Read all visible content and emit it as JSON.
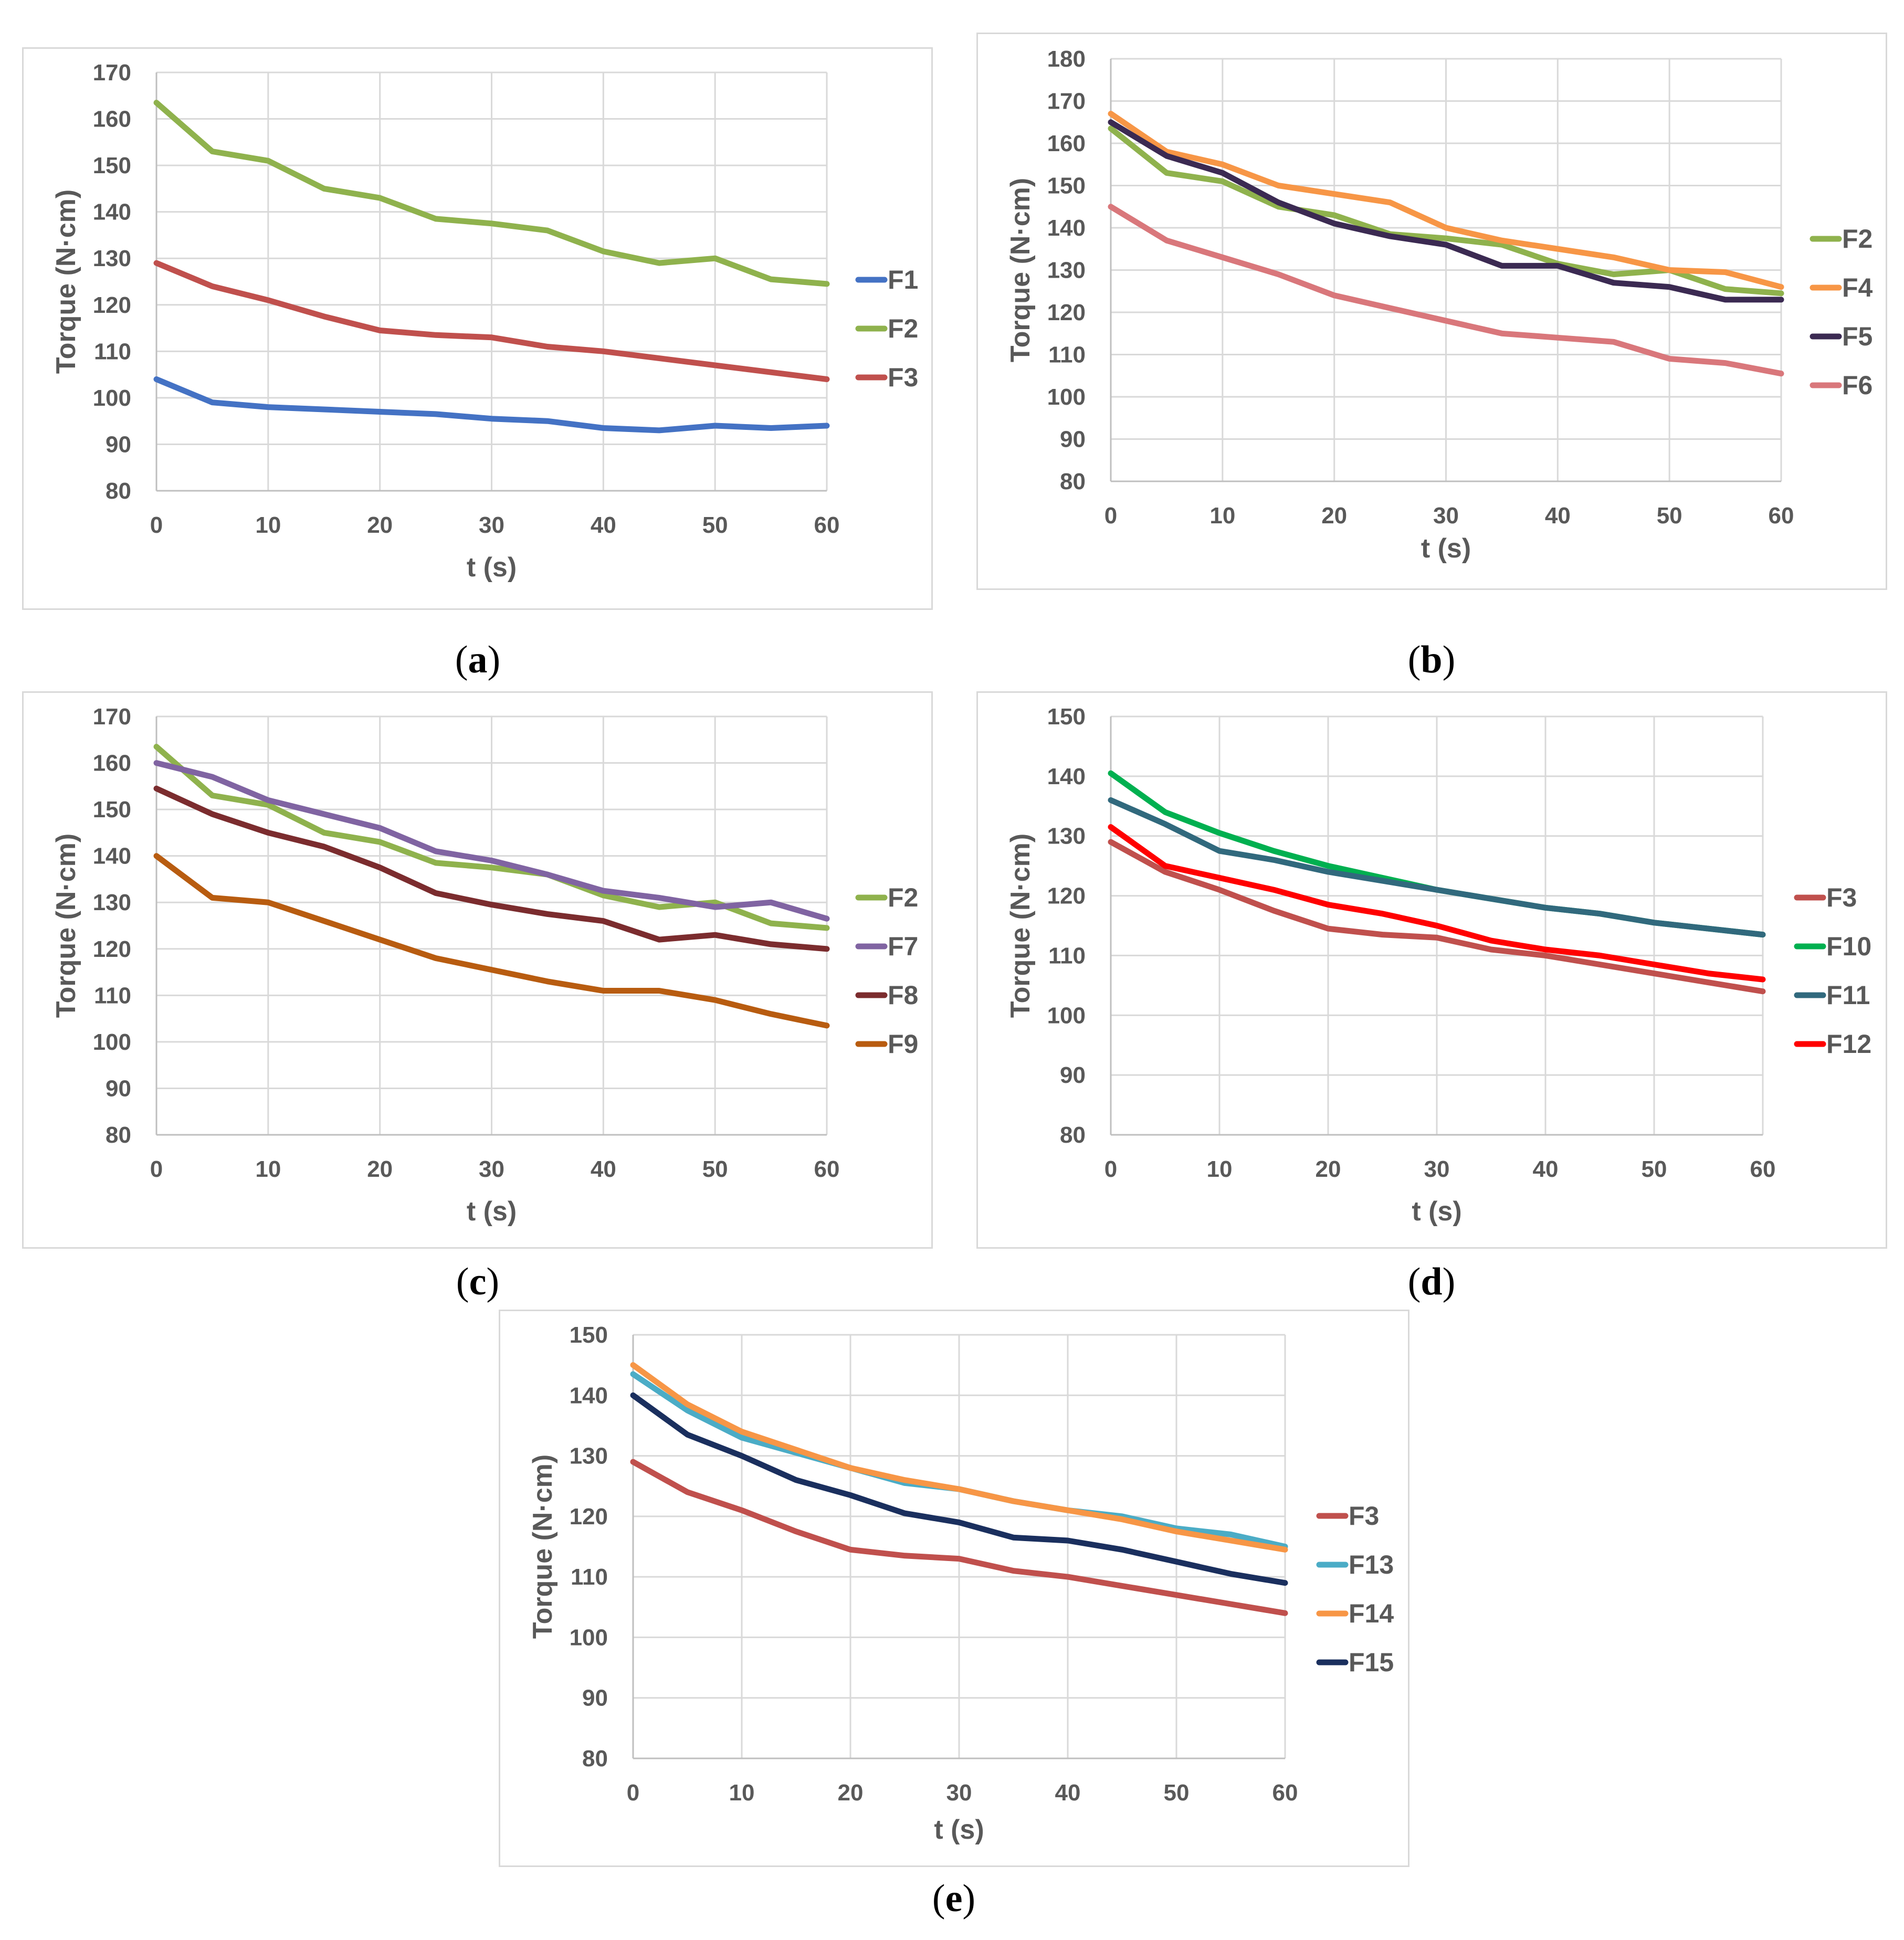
{
  "chart_data": [
    {
      "type": "line",
      "id": "a",
      "caption": "a",
      "xlabel": "t (s)",
      "ylabel": "Torque (N·cm)",
      "xlim": [
        0,
        60
      ],
      "ylim": [
        80,
        170
      ],
      "xticks": [
        0,
        10,
        20,
        30,
        40,
        50,
        60
      ],
      "yticks": [
        80,
        90,
        100,
        110,
        120,
        130,
        140,
        150,
        160,
        170
      ],
      "grid": true,
      "legend": "right",
      "x": [
        0,
        5,
        10,
        15,
        20,
        25,
        30,
        35,
        40,
        45,
        50,
        55,
        60
      ],
      "series": [
        {
          "name": "F1",
          "color": "#4472c4",
          "values": [
            104,
            99,
            98,
            97.5,
            97,
            96.5,
            95.5,
            95,
            93.5,
            93,
            94,
            93.5,
            94
          ]
        },
        {
          "name": "F2",
          "color": "#8fb24d",
          "values": [
            163.5,
            153,
            151,
            145,
            143,
            138.5,
            137.5,
            136,
            131.5,
            129,
            130,
            125.5,
            124.5
          ]
        },
        {
          "name": "F3",
          "color": "#c0504d",
          "values": [
            129,
            124,
            121,
            117.5,
            114.5,
            113.5,
            113,
            111,
            110,
            108.5,
            107,
            105.5,
            104
          ]
        }
      ]
    },
    {
      "type": "line",
      "id": "b",
      "caption": "b",
      "xlabel": "t (s)",
      "ylabel": "Torque (N·cm)",
      "xlim": [
        0,
        60
      ],
      "ylim": [
        80,
        180
      ],
      "xticks": [
        0,
        10,
        20,
        30,
        40,
        50,
        60
      ],
      "yticks": [
        80,
        90,
        100,
        110,
        120,
        130,
        140,
        150,
        160,
        170,
        180
      ],
      "grid": true,
      "legend": "right",
      "x": [
        0,
        5,
        10,
        15,
        20,
        25,
        30,
        35,
        40,
        45,
        50,
        55,
        60
      ],
      "series": [
        {
          "name": "F2",
          "color": "#8fb24d",
          "values": [
            163.5,
            153,
            151,
            145,
            143,
            138.5,
            137.5,
            136,
            131.5,
            129,
            130,
            125.5,
            124.5
          ]
        },
        {
          "name": "F4",
          "color": "#f79646",
          "values": [
            167,
            158,
            155,
            150,
            148,
            146,
            140,
            137,
            135,
            133,
            130,
            129.5,
            126
          ]
        },
        {
          "name": "F5",
          "color": "#3b2a52",
          "values": [
            165,
            157,
            153,
            146,
            141,
            138,
            136,
            131,
            131,
            127,
            126,
            123,
            123
          ]
        },
        {
          "name": "F6",
          "color": "#d9777b",
          "values": [
            145,
            137,
            133,
            129,
            124,
            121,
            118,
            115,
            114,
            113,
            109,
            108,
            105.5
          ]
        }
      ]
    },
    {
      "type": "line",
      "id": "c",
      "caption": "c",
      "xlabel": "t (s)",
      "ylabel": "Torque (N·cm)",
      "xlim": [
        0,
        60
      ],
      "ylim": [
        80,
        170
      ],
      "xticks": [
        0,
        10,
        20,
        30,
        40,
        50,
        60
      ],
      "yticks": [
        80,
        90,
        100,
        110,
        120,
        130,
        140,
        150,
        160,
        170
      ],
      "grid": true,
      "legend": "right",
      "x": [
        0,
        5,
        10,
        15,
        20,
        25,
        30,
        35,
        40,
        45,
        50,
        55,
        60
      ],
      "series": [
        {
          "name": "F2",
          "color": "#8fb24d",
          "values": [
            163.5,
            153,
            151,
            145,
            143,
            138.5,
            137.5,
            136,
            131.5,
            129,
            130,
            125.5,
            124.5
          ]
        },
        {
          "name": "F7",
          "color": "#8064a2",
          "values": [
            160,
            157,
            152,
            149,
            146,
            141,
            139,
            136,
            132.5,
            131,
            129,
            130,
            126.5
          ]
        },
        {
          "name": "F8",
          "color": "#7b2c2e",
          "values": [
            154.5,
            149,
            145,
            142,
            137.5,
            132,
            129.5,
            127.5,
            126,
            122,
            123,
            121,
            120
          ]
        },
        {
          "name": "F9",
          "color": "#b85c10",
          "values": [
            140,
            131,
            130,
            126,
            122,
            118,
            115.5,
            113,
            111,
            111,
            109,
            106,
            103.5
          ]
        }
      ]
    },
    {
      "type": "line",
      "id": "d",
      "caption": "d",
      "xlabel": "t (s)",
      "ylabel": "Torque (N·cm)",
      "xlim": [
        0,
        60
      ],
      "ylim": [
        80,
        150
      ],
      "xticks": [
        0,
        10,
        20,
        30,
        40,
        50,
        60
      ],
      "yticks": [
        80,
        90,
        100,
        110,
        120,
        130,
        140,
        150
      ],
      "grid": true,
      "legend": "right",
      "x": [
        0,
        5,
        10,
        15,
        20,
        25,
        30,
        35,
        40,
        45,
        50,
        55,
        60
      ],
      "series": [
        {
          "name": "F3",
          "color": "#c0504d",
          "values": [
            129,
            124,
            121,
            117.5,
            114.5,
            113.5,
            113,
            111,
            110,
            108.5,
            107,
            105.5,
            104
          ]
        },
        {
          "name": "F10",
          "color": "#00b050",
          "values": [
            140.5,
            134,
            130.5,
            127.5,
            125,
            123,
            121,
            119.5,
            118,
            117,
            115.5,
            114.5,
            113.5
          ]
        },
        {
          "name": "F11",
          "color": "#31697d",
          "values": [
            136,
            132,
            127.5,
            126,
            124,
            122.5,
            121,
            119.5,
            118,
            117,
            115.5,
            114.5,
            113.5
          ]
        },
        {
          "name": "F12",
          "color": "#ff0000",
          "values": [
            131.5,
            125,
            123,
            121,
            118.5,
            117,
            115,
            112.5,
            111,
            110,
            108.5,
            107,
            106
          ]
        }
      ]
    },
    {
      "type": "line",
      "id": "e",
      "caption": "e",
      "xlabel": "t (s)",
      "ylabel": "Torque (N·cm)",
      "xlim": [
        0,
        60
      ],
      "ylim": [
        80,
        150
      ],
      "xticks": [
        0,
        10,
        20,
        30,
        40,
        50,
        60
      ],
      "yticks": [
        80,
        90,
        100,
        110,
        120,
        130,
        140,
        150
      ],
      "grid": true,
      "legend": "right",
      "x": [
        0,
        5,
        10,
        15,
        20,
        25,
        30,
        35,
        40,
        45,
        50,
        55,
        60
      ],
      "series": [
        {
          "name": "F3",
          "color": "#c0504d",
          "values": [
            129,
            124,
            121,
            117.5,
            114.5,
            113.5,
            113,
            111,
            110,
            108.5,
            107,
            105.5,
            104
          ]
        },
        {
          "name": "F13",
          "color": "#4bacc6",
          "values": [
            143.5,
            137.5,
            133,
            130.5,
            128,
            125.5,
            124.5,
            122.5,
            121,
            120,
            118,
            117,
            115
          ]
        },
        {
          "name": "F14",
          "color": "#f79646",
          "values": [
            145,
            138.5,
            134,
            131,
            128,
            126,
            124.5,
            122.5,
            121,
            119.5,
            117.5,
            116,
            114.5
          ]
        },
        {
          "name": "F15",
          "color": "#1a2f5e",
          "values": [
            140,
            133.5,
            130,
            126,
            123.5,
            120.5,
            119,
            116.5,
            116,
            114.5,
            112.5,
            110.5,
            109
          ]
        }
      ]
    }
  ]
}
